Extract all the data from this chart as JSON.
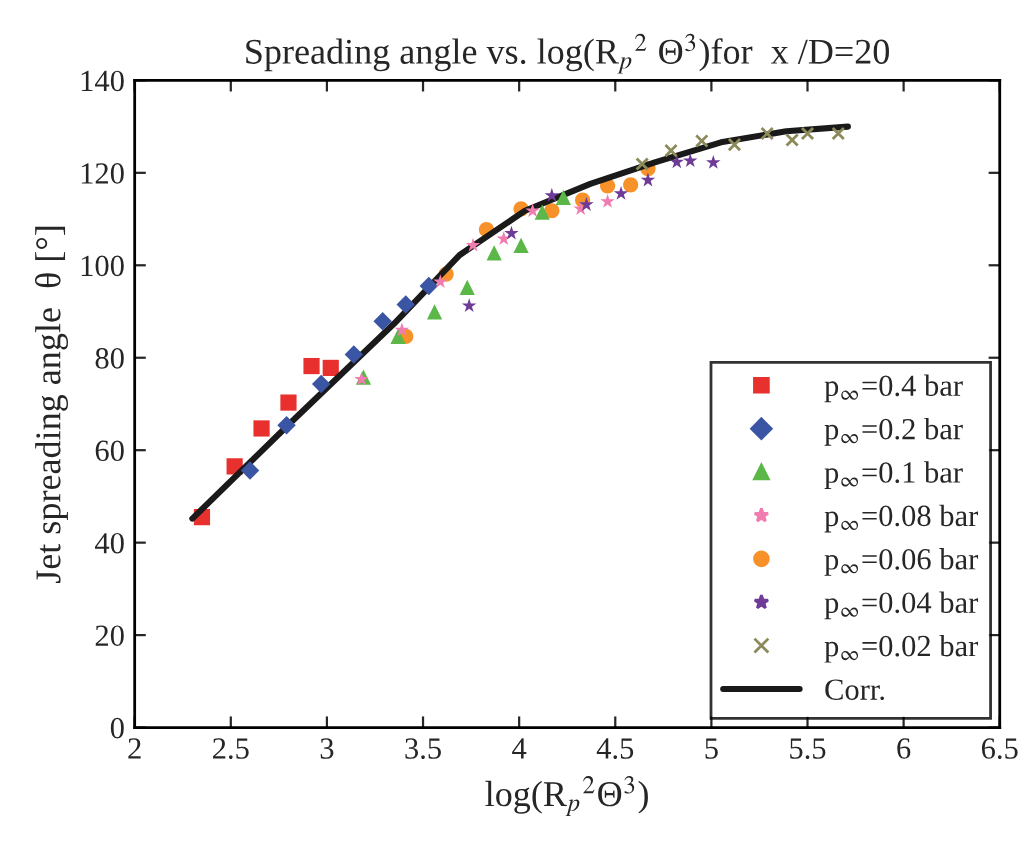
{
  "chart_data": {
    "type": "scatter",
    "title": "Spreading angle vs. log(R$_{p}$$^{2}$ Θ$^{3}$)for  x /D=20",
    "xlabel": "log(R$_{p}$$^{2}$Θ$^{3}$)",
    "ylabel": "Jet spreading angle  θ [°]",
    "xlim": [
      2,
      6.5
    ],
    "xticks": [
      2,
      2.5,
      3,
      3.5,
      4,
      4.5,
      5,
      5.5,
      6,
      6.5
    ],
    "ylim": [
      0,
      140
    ],
    "yticks": [
      0,
      20,
      40,
      60,
      80,
      100,
      120,
      140
    ],
    "grid": false,
    "legend": "bottom right",
    "series": [
      {
        "name": "p$_{∞}$=0.4 bar",
        "color": "#e8312f",
        "marker": "square",
        "x": [
          2.35,
          2.52,
          2.66,
          2.8,
          2.92,
          3.02
        ],
        "values": [
          45.5,
          56.5,
          64.7,
          70.3,
          78.2,
          77.8
        ]
      },
      {
        "name": "p$_{∞}$=0.2 bar",
        "color": "#3a55a4",
        "marker": "diamond",
        "x": [
          2.6,
          2.79,
          2.97,
          3.14,
          3.29,
          3.41,
          3.53
        ],
        "values": [
          55.6,
          65.4,
          74.3,
          80.7,
          87.9,
          91.5,
          95.5
        ]
      },
      {
        "name": "p$_{∞}$=0.1 bar",
        "color": "#5bb848",
        "marker": "triangle",
        "x": [
          3.19,
          3.37,
          3.56,
          3.73,
          3.87,
          4.01,
          4.12,
          4.23
        ],
        "values": [
          75.8,
          84.6,
          89.9,
          95.2,
          102.7,
          104.3,
          111.5,
          114.7
        ]
      },
      {
        "name": "p$_{∞}$=0.08 bar",
        "color": "#f07cb0",
        "marker": "star",
        "x": [
          3.18,
          3.39,
          3.59,
          3.76,
          3.92,
          4.07,
          4.32,
          4.46
        ],
        "values": [
          75.3,
          86,
          96.4,
          104.3,
          105.7,
          111.8,
          112.2,
          113.8
        ]
      },
      {
        "name": "p$_{∞}$=0.06 bar",
        "color": "#f7922a",
        "marker": "circle",
        "x": [
          3.41,
          3.62,
          3.83,
          4.01,
          4.17,
          4.33,
          4.46,
          4.58,
          4.67
        ],
        "values": [
          84.6,
          98.1,
          107.7,
          112.2,
          111.8,
          114.1,
          117.2,
          117.4,
          120.9
        ]
      },
      {
        "name": "p$_{∞}$=0.04 bar",
        "color": "#6e3b96",
        "marker": "star",
        "x": [
          3.74,
          3.96,
          4.17,
          4.35,
          4.53,
          4.67,
          4.82,
          4.89,
          5.01
        ],
        "values": [
          91.2,
          106.9,
          115.1,
          113.1,
          115.5,
          118.4,
          122.3,
          122.6,
          122.2
        ]
      },
      {
        "name": "p$_{∞}$=0.02 bar",
        "color": "#8d8a5a",
        "marker": "cross",
        "x": [
          4.64,
          4.79,
          4.95,
          5.12,
          5.29,
          5.42,
          5.5,
          5.66
        ],
        "values": [
          121.9,
          124.8,
          126.9,
          126.1,
          128.5,
          127.1,
          128.5,
          128.5
        ]
      },
      {
        "name": "Corr.",
        "type": "line",
        "color": "#1a1a1a",
        "line_style": "solid",
        "x": [
          2.3,
          2.8,
          3.35,
          3.69,
          4.03,
          4.37,
          4.71,
          5.05,
          5.39,
          5.71
        ],
        "values": [
          45.2,
          65.5,
          87.4,
          102.2,
          111.8,
          117.6,
          122.3,
          126.6,
          129.0,
          130.0
        ]
      }
    ]
  }
}
